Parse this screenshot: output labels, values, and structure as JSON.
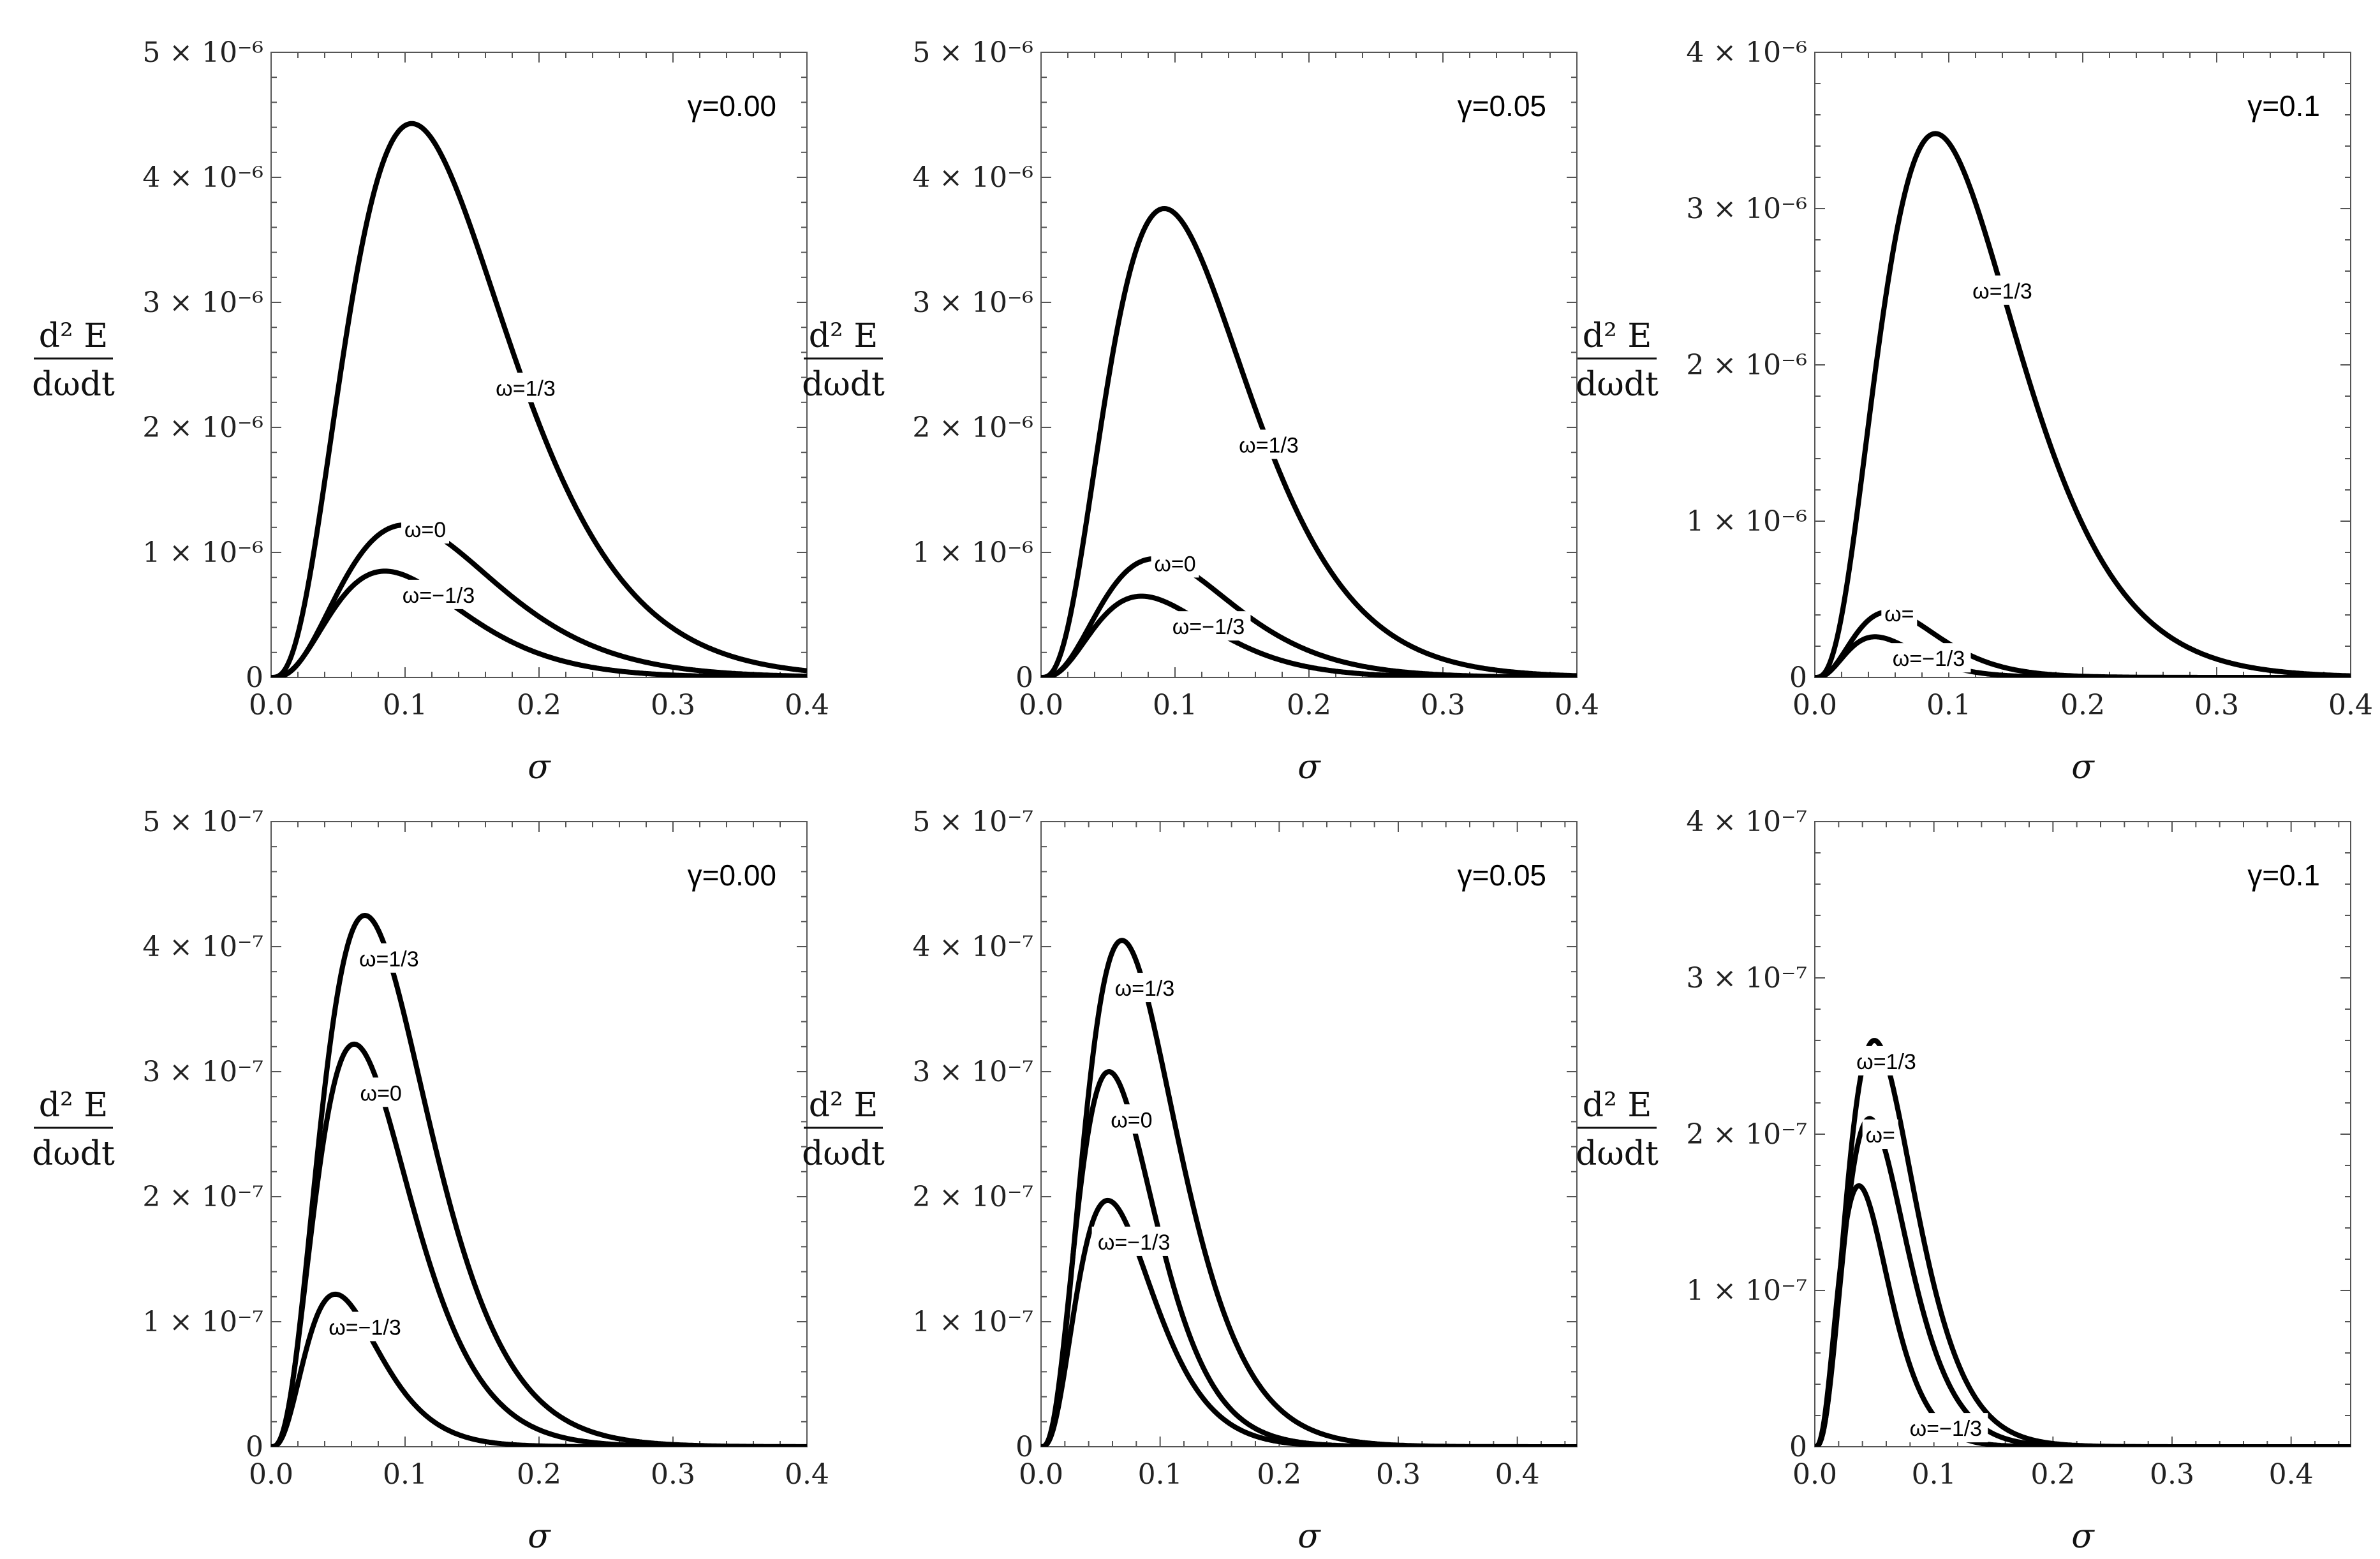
{
  "figure": {
    "y_label_top": "d² E",
    "y_label_bottom": "dωdt",
    "x_label": "σ"
  },
  "chart_data": [
    {
      "type": "line",
      "gamma_label": "γ=0.00",
      "xlim": [
        0,
        0.4
      ],
      "ylim": [
        0,
        5e-06
      ],
      "x_ticks": [
        0.0,
        0.1,
        0.2,
        0.3,
        0.4
      ],
      "x_tick_labels": [
        "0.0",
        "0.1",
        "0.2",
        "0.3",
        "0.4"
      ],
      "y_ticks": [
        0,
        1e-06,
        2e-06,
        3e-06,
        4e-06,
        5e-06
      ],
      "y_tick_labels": [
        "0",
        "1 × 10⁻⁶",
        "2 × 10⁻⁶",
        "3 × 10⁻⁶",
        "4 × 10⁻⁶",
        "5 × 10⁻⁶"
      ],
      "series": [
        {
          "name": "ω=1/3",
          "peak_x": 0.105,
          "peak_y": 4.43e-06,
          "label_x": 0.19,
          "label": "ω=1/3"
        },
        {
          "name": "ω=0",
          "peak_x": 0.1,
          "peak_y": 1.22e-06,
          "label_x": 0.115,
          "label": "ω=0"
        },
        {
          "name": "ω=−1/3",
          "peak_x": 0.085,
          "peak_y": 8.5e-07,
          "label_x": 0.125,
          "label": "ω=−1/3"
        }
      ]
    },
    {
      "type": "line",
      "gamma_label": "γ=0.05",
      "xlim": [
        0,
        0.4
      ],
      "ylim": [
        0,
        5e-06
      ],
      "x_ticks": [
        0.0,
        0.1,
        0.2,
        0.3,
        0.4
      ],
      "x_tick_labels": [
        "0.0",
        "0.1",
        "0.2",
        "0.3",
        "0.4"
      ],
      "y_ticks": [
        0,
        1e-06,
        2e-06,
        3e-06,
        4e-06,
        5e-06
      ],
      "y_tick_labels": [
        "0",
        "1 × 10⁻⁶",
        "2 × 10⁻⁶",
        "3 × 10⁻⁶",
        "4 × 10⁻⁶",
        "5 × 10⁻⁶"
      ],
      "series": [
        {
          "name": "ω=1/3",
          "peak_x": 0.092,
          "peak_y": 3.75e-06,
          "label_x": 0.17,
          "label": "ω=1/3"
        },
        {
          "name": "ω=0",
          "peak_x": 0.085,
          "peak_y": 9.5e-07,
          "label_x": 0.1,
          "label": "ω=0"
        },
        {
          "name": "ω=−1/3",
          "peak_x": 0.075,
          "peak_y": 6.5e-07,
          "label_x": 0.125,
          "label": "ω=−1/3"
        }
      ]
    },
    {
      "type": "line",
      "gamma_label": "γ=0.1",
      "xlim": [
        0,
        0.4
      ],
      "ylim": [
        0,
        4e-06
      ],
      "x_ticks": [
        0.0,
        0.1,
        0.2,
        0.3,
        0.4
      ],
      "x_tick_labels": [
        "0.0",
        "0.1",
        "0.2",
        "0.3",
        "0.4"
      ],
      "y_ticks": [
        0,
        1e-06,
        2e-06,
        3e-06,
        4e-06
      ],
      "y_tick_labels": [
        "0",
        "1 × 10⁻⁶",
        "2 × 10⁻⁶",
        "3 × 10⁻⁶",
        "4 × 10⁻⁶"
      ],
      "series": [
        {
          "name": "ω=1/3",
          "peak_x": 0.09,
          "peak_y": 3.48e-06,
          "label_x": 0.14,
          "label": "ω=1/3"
        },
        {
          "name": "ω=",
          "peak_x": 0.055,
          "peak_y": 4.2e-07,
          "label_x": 0.063,
          "label": "ω="
        },
        {
          "name": "ω=−1/3",
          "peak_x": 0.045,
          "peak_y": 2.6e-07,
          "label_x": 0.085,
          "label": "ω=−1/3"
        }
      ]
    },
    {
      "type": "line",
      "gamma_label": "γ=0.00",
      "xlim": [
        0,
        0.4
      ],
      "ylim": [
        0,
        5e-07
      ],
      "x_ticks": [
        0.0,
        0.1,
        0.2,
        0.3,
        0.4
      ],
      "x_tick_labels": [
        "0.0",
        "0.1",
        "0.2",
        "0.3",
        "0.4"
      ],
      "y_ticks": [
        0,
        1e-07,
        2e-07,
        3e-07,
        4e-07,
        5e-07
      ],
      "y_tick_labels": [
        "0",
        "1 × 10⁻⁷",
        "2 × 10⁻⁷",
        "3 × 10⁻⁷",
        "4 × 10⁻⁷",
        "5 × 10⁻⁷"
      ],
      "series": [
        {
          "name": "ω=1/3",
          "peak_x": 0.07,
          "peak_y": 4.25e-07,
          "label_x": 0.088,
          "label": "ω=1/3"
        },
        {
          "name": "ω=0",
          "peak_x": 0.062,
          "peak_y": 3.22e-07,
          "label_x": 0.082,
          "label": "ω=0"
        },
        {
          "name": "ω=−1/3",
          "peak_x": 0.048,
          "peak_y": 1.22e-07,
          "label_x": 0.07,
          "label": "ω=−1/3"
        }
      ]
    },
    {
      "type": "line",
      "gamma_label": "γ=0.05",
      "xlim": [
        0,
        0.45
      ],
      "ylim": [
        0,
        5e-07
      ],
      "x_ticks": [
        0.0,
        0.1,
        0.2,
        0.3,
        0.4
      ],
      "x_tick_labels": [
        "0.0",
        "0.1",
        "0.2",
        "0.3",
        "0.4"
      ],
      "y_ticks": [
        0,
        1e-07,
        2e-07,
        3e-07,
        4e-07,
        5e-07
      ],
      "y_tick_labels": [
        "0",
        "1 × 10⁻⁷",
        "2 × 10⁻⁷",
        "3 × 10⁻⁷",
        "4 × 10⁻⁷",
        "5 × 10⁻⁷"
      ],
      "series": [
        {
          "name": "ω=1/3",
          "peak_x": 0.068,
          "peak_y": 4.05e-07,
          "label_x": 0.087,
          "label": "ω=1/3"
        },
        {
          "name": "ω=0",
          "peak_x": 0.057,
          "peak_y": 3e-07,
          "label_x": 0.076,
          "label": "ω=0"
        },
        {
          "name": "ω=−1/3",
          "peak_x": 0.056,
          "peak_y": 1.97e-07,
          "label_x": 0.078,
          "label": "ω=−1/3"
        }
      ]
    },
    {
      "type": "line",
      "gamma_label": "γ=0.1",
      "xlim": [
        0,
        0.45
      ],
      "ylim": [
        0,
        4e-07
      ],
      "x_ticks": [
        0.0,
        0.1,
        0.2,
        0.3,
        0.4
      ],
      "x_tick_labels": [
        "0.0",
        "0.1",
        "0.2",
        "0.3",
        "0.4"
      ],
      "y_ticks": [
        0,
        1e-07,
        2e-07,
        3e-07,
        4e-07
      ],
      "y_tick_labels": [
        "0",
        "1 × 10⁻⁷",
        "2 × 10⁻⁷",
        "3 × 10⁻⁷",
        "4 × 10⁻⁷"
      ],
      "series": [
        {
          "name": "ω=1/3",
          "peak_x": 0.05,
          "peak_y": 2.6e-07,
          "label_x": 0.06,
          "label": "ω=1/3"
        },
        {
          "name": "ω=",
          "peak_x": 0.046,
          "peak_y": 2.1e-07,
          "label_x": 0.055,
          "label": "ω="
        },
        {
          "name": "ω=−1/3",
          "peak_x": 0.037,
          "peak_y": 1.67e-07,
          "label_x": 0.11,
          "label": "ω=−1/3"
        }
      ]
    }
  ]
}
